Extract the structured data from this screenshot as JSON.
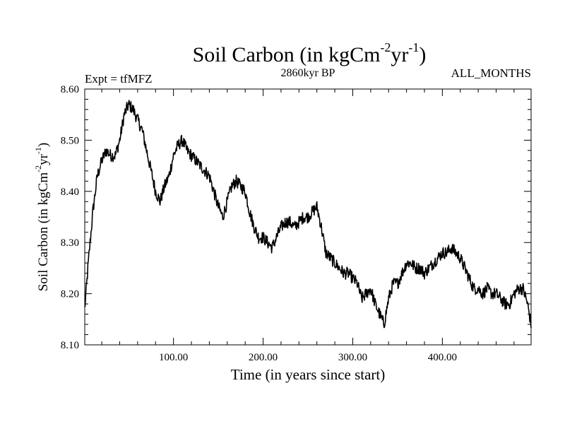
{
  "chart_data": {
    "type": "line",
    "title": "Soil Carbon (in kgCm",
    "title_sup1": "-2",
    "title_mid": "yr",
    "title_sup2": "-1",
    "title_end": ")",
    "subtitle_left": "Expt = tfMFZ",
    "subtitle_center": "2860kyr BP",
    "subtitle_right": "ALL_MONTHS",
    "xlabel": "Time (in years since start)",
    "ylabel": "Soil Carbon (in kgCm",
    "ylabel_sup1": "-2",
    "ylabel_mid": "yr",
    "ylabel_sup2": "-1",
    "ylabel_end": ")",
    "xlim": [
      1,
      499
    ],
    "ylim": [
      8.1,
      8.6
    ],
    "xticks": [
      100,
      200,
      300,
      400
    ],
    "xtick_labels": [
      "100.00",
      "200.00",
      "300.00",
      "400.00"
    ],
    "yticks": [
      8.1,
      8.2,
      8.3,
      8.4,
      8.5,
      8.6
    ],
    "ytick_labels": [
      "8.10",
      "8.20",
      "8.30",
      "8.40",
      "8.50",
      "8.60"
    ],
    "series": [
      {
        "name": "Soil Carbon",
        "color": "#000000",
        "x": [
          1,
          5,
          10,
          15,
          20,
          25,
          30,
          35,
          40,
          45,
          50,
          55,
          60,
          65,
          70,
          75,
          80,
          85,
          90,
          95,
          100,
          105,
          110,
          115,
          120,
          125,
          130,
          135,
          140,
          145,
          150,
          155,
          160,
          165,
          170,
          175,
          180,
          185,
          190,
          195,
          200,
          205,
          210,
          215,
          220,
          225,
          230,
          235,
          240,
          245,
          250,
          255,
          260,
          265,
          270,
          275,
          280,
          285,
          290,
          295,
          300,
          305,
          310,
          315,
          320,
          325,
          330,
          335,
          340,
          345,
          350,
          355,
          360,
          365,
          370,
          375,
          380,
          385,
          390,
          395,
          400,
          405,
          410,
          415,
          420,
          425,
          430,
          435,
          440,
          445,
          450,
          455,
          460,
          465,
          470,
          475,
          480,
          485,
          490,
          495,
          499
        ],
        "values": [
          8.17,
          8.26,
          8.36,
          8.43,
          8.46,
          8.48,
          8.47,
          8.47,
          8.5,
          8.55,
          8.57,
          8.56,
          8.54,
          8.52,
          8.48,
          8.44,
          8.4,
          8.38,
          8.41,
          8.43,
          8.47,
          8.49,
          8.5,
          8.48,
          8.47,
          8.46,
          8.45,
          8.44,
          8.43,
          8.4,
          8.37,
          8.35,
          8.38,
          8.41,
          8.42,
          8.41,
          8.4,
          8.36,
          8.33,
          8.31,
          8.31,
          8.3,
          8.29,
          8.31,
          8.33,
          8.34,
          8.34,
          8.33,
          8.34,
          8.35,
          8.35,
          8.36,
          8.37,
          8.33,
          8.28,
          8.27,
          8.26,
          8.25,
          8.24,
          8.24,
          8.23,
          8.22,
          8.19,
          8.2,
          8.21,
          8.18,
          8.16,
          8.14,
          8.19,
          8.22,
          8.22,
          8.24,
          8.26,
          8.26,
          8.25,
          8.25,
          8.24,
          8.25,
          8.26,
          8.27,
          8.28,
          8.28,
          8.29,
          8.28,
          8.27,
          8.25,
          8.23,
          8.21,
          8.21,
          8.2,
          8.21,
          8.2,
          8.2,
          8.19,
          8.18,
          8.18,
          8.2,
          8.21,
          8.21,
          8.18,
          8.14
        ],
        "noise_amplitude": 0.012
      }
    ]
  }
}
